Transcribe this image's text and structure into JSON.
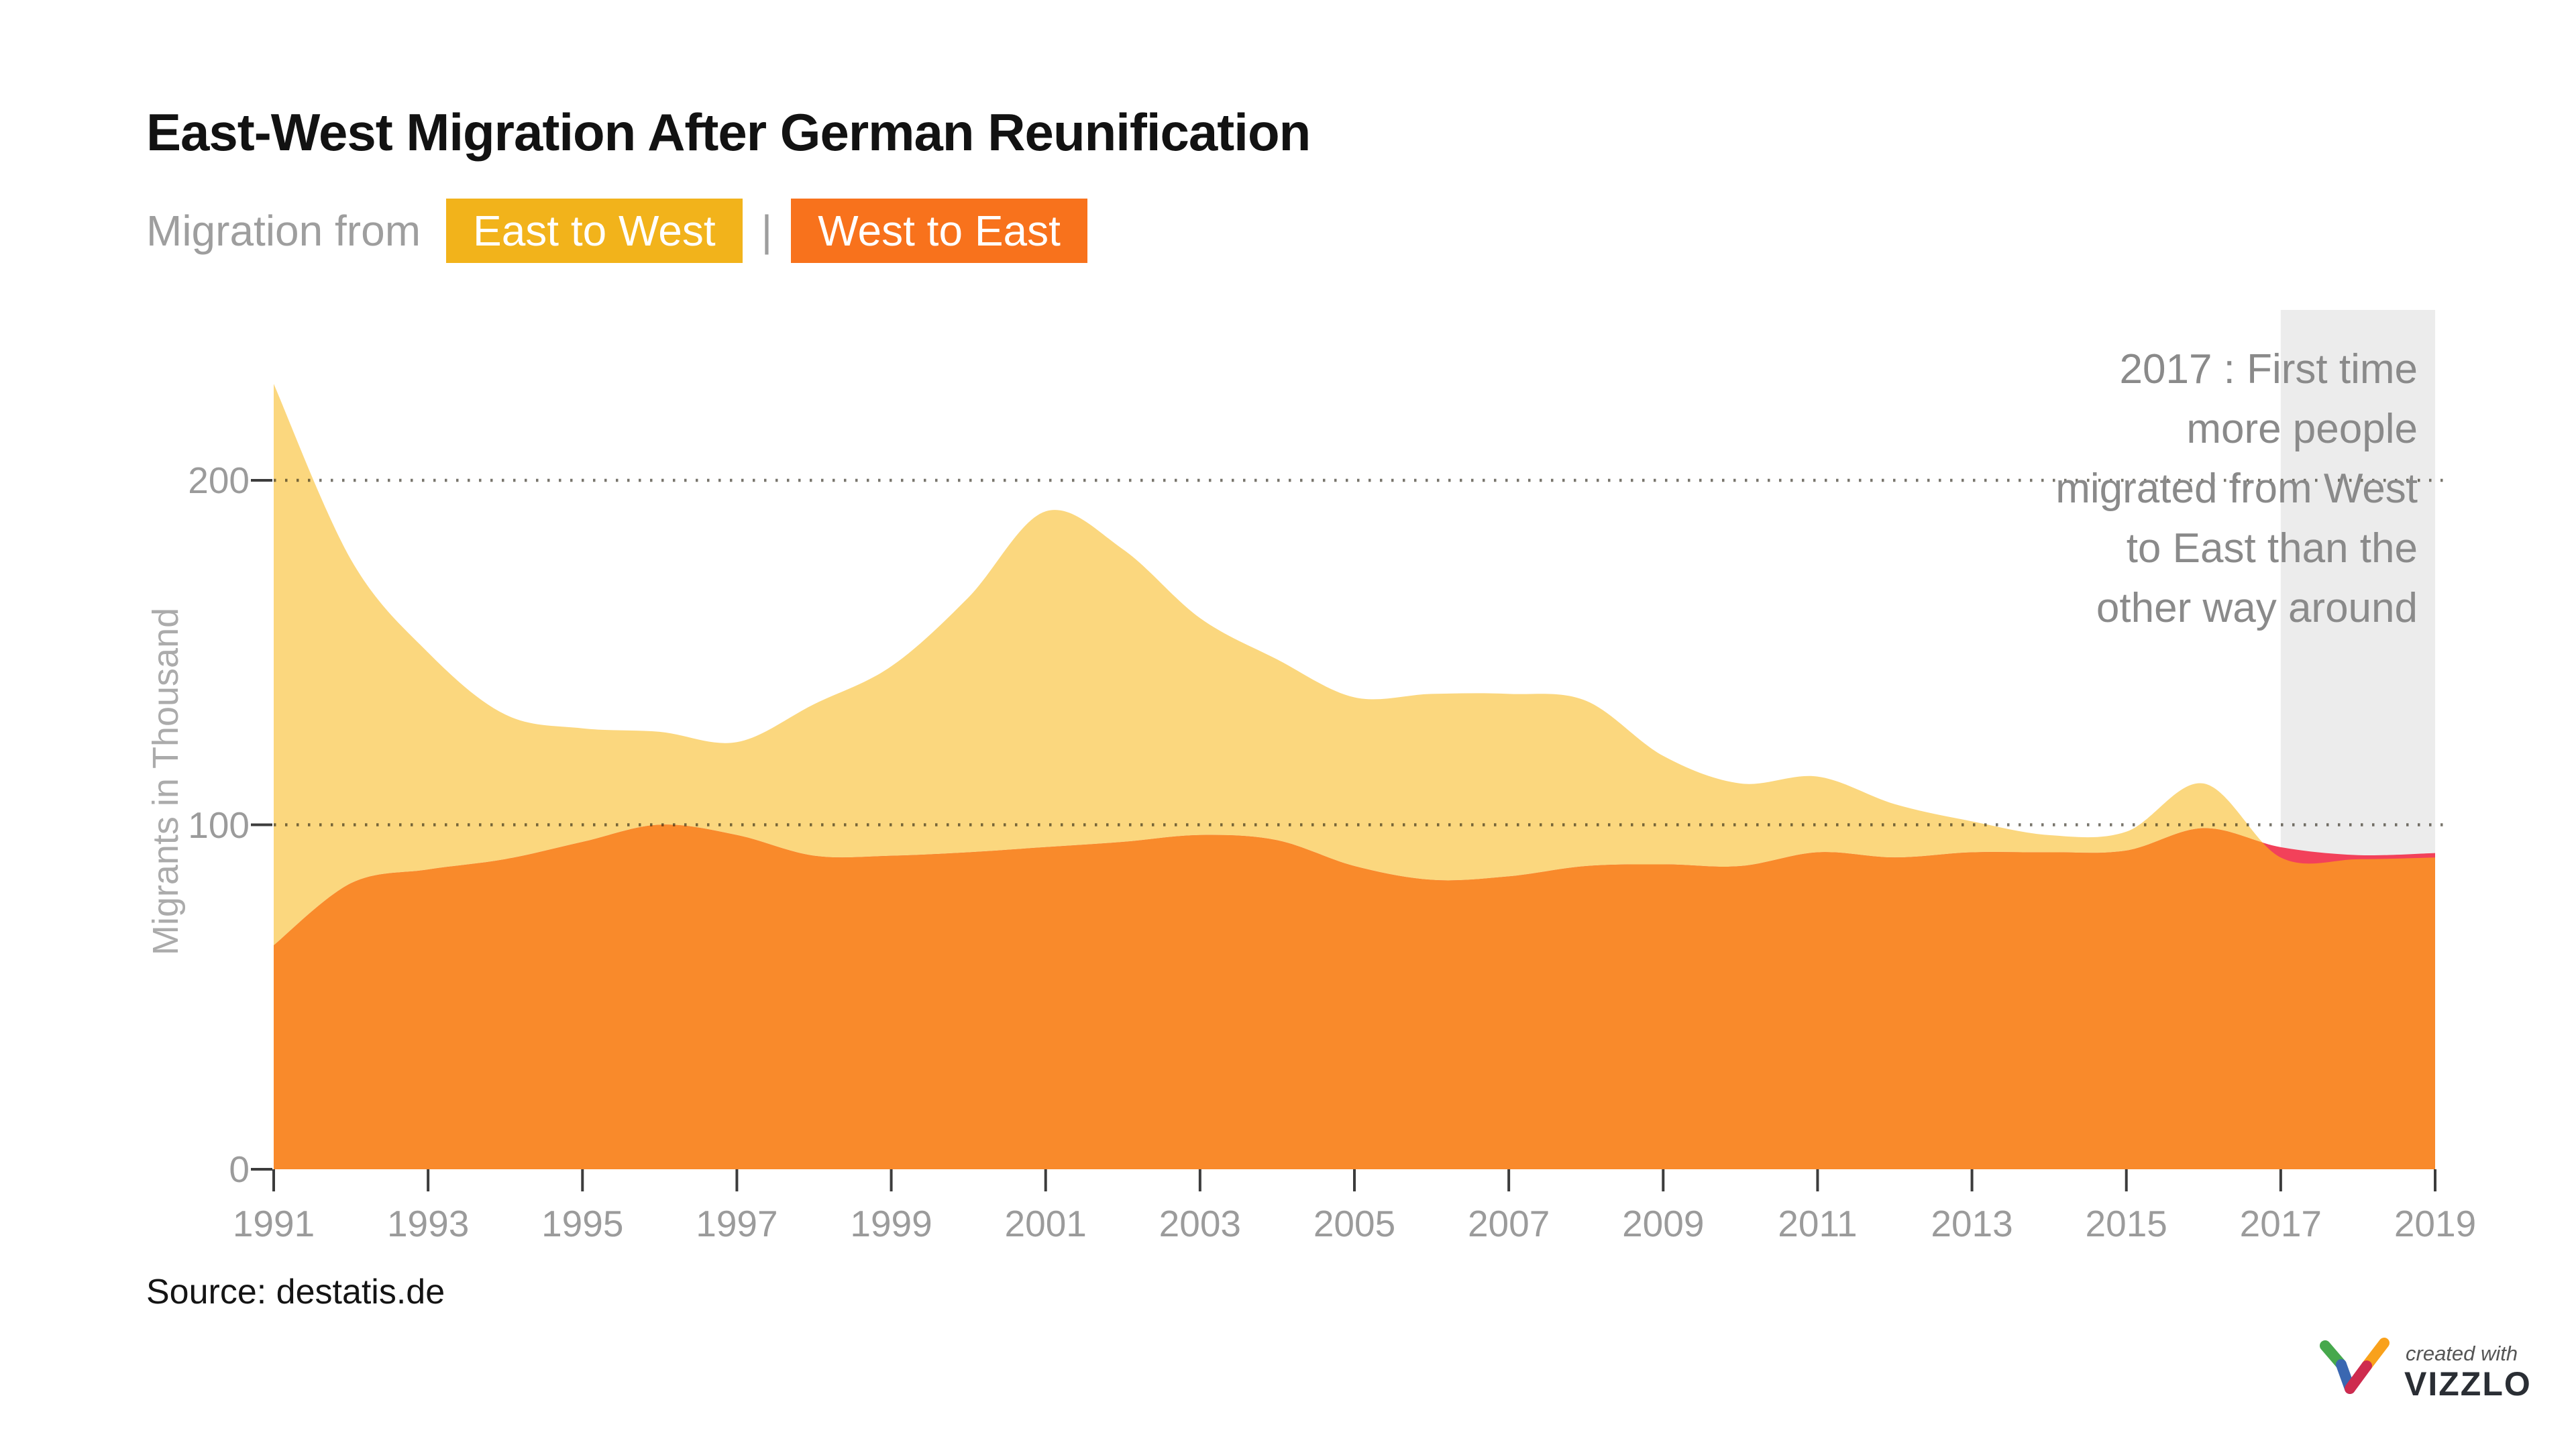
{
  "header": {
    "title": "East-West Migration After German Reunification",
    "subtitle_prefix": "Migration from"
  },
  "legend": {
    "east_to_west": "East to West",
    "separator": "|",
    "west_to_east": "West to East"
  },
  "colors": {
    "east_to_west_chip": "#F2B31B",
    "west_to_east_chip": "#F8721C",
    "east_to_west_area": "#FBD77E",
    "west_to_east_area": "#F98A2B",
    "west_to_east_excess": "#F2415A",
    "highlight_band": "#ECECEC",
    "gridline_dot": "rgba(30,25,10,0.6)",
    "tick_mark": "#3C3C3C"
  },
  "y_axis": {
    "label": "Migrants in Thousand"
  },
  "annotation": {
    "lines": [
      "2017 : First time",
      "more people",
      "migrated from West",
      "to East than the",
      "other way around"
    ]
  },
  "footer": {
    "source": "Source: destatis.de"
  },
  "vizzlo": {
    "created_with": "created with",
    "brand": "VIZZLO"
  },
  "chart_data": {
    "type": "area",
    "title": "East-West Migration After German Reunification",
    "ylabel": "Migrants in Thousand",
    "ylim": [
      0,
      230
    ],
    "grid": "dotted-horizontal",
    "gridlines": [
      100,
      200
    ],
    "yticks": [
      0,
      100,
      200
    ],
    "xticks": [
      1991,
      1993,
      1995,
      1997,
      1999,
      2001,
      2003,
      2005,
      2007,
      2009,
      2011,
      2013,
      2015,
      2017,
      2019
    ],
    "x": [
      1991,
      1992,
      1993,
      1994,
      1995,
      1996,
      1997,
      1998,
      1999,
      2000,
      2001,
      2002,
      2003,
      2004,
      2005,
      2006,
      2007,
      2008,
      2009,
      2010,
      2011,
      2012,
      2013,
      2014,
      2015,
      2016,
      2017,
      2018,
      2019
    ],
    "series": [
      {
        "name": "East to West",
        "values": [
          228,
          177,
          150,
          132,
          128,
          127,
          124,
          135,
          146,
          166,
          191,
          180,
          160,
          148,
          137,
          138,
          138,
          136,
          120,
          112,
          114,
          106,
          101,
          97,
          98,
          112,
          90.5,
          90,
          90.5
        ]
      },
      {
        "name": "West to East",
        "values": [
          65,
          83,
          87,
          90,
          95,
          100,
          97,
          91,
          91,
          92,
          93.5,
          95,
          97,
          95.5,
          88,
          84,
          85,
          88,
          88.5,
          88,
          92,
          90.5,
          92,
          92,
          92.5,
          99,
          93.5,
          91.2,
          91.8
        ]
      }
    ],
    "highlight_region": {
      "from": 2017,
      "to": 2019
    },
    "annotation": "2017 : First time more people migrated from West to East than the other way around"
  }
}
